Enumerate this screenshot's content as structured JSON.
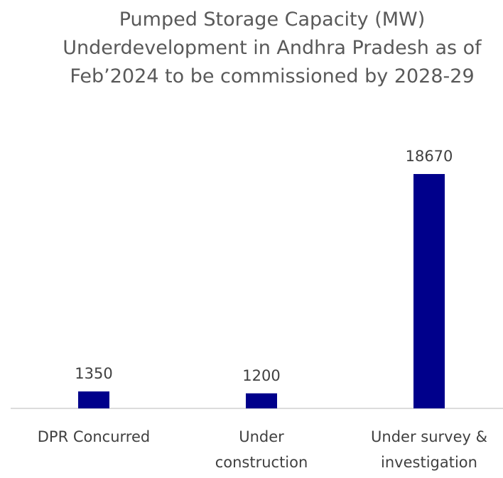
{
  "chart_data": {
    "type": "bar",
    "title": "Pumped Storage Capacity (MW) Underdevelopment in Andhra Pradesh as of Feb’2024 to be commissioned by 2028-29",
    "categories": [
      "DPR Concurred",
      "Under construction",
      "Under survey & investigation"
    ],
    "values": [
      1350,
      1200,
      18670
    ],
    "color": "#00008b",
    "ylim": [
      0,
      20000
    ],
    "grid": false
  }
}
